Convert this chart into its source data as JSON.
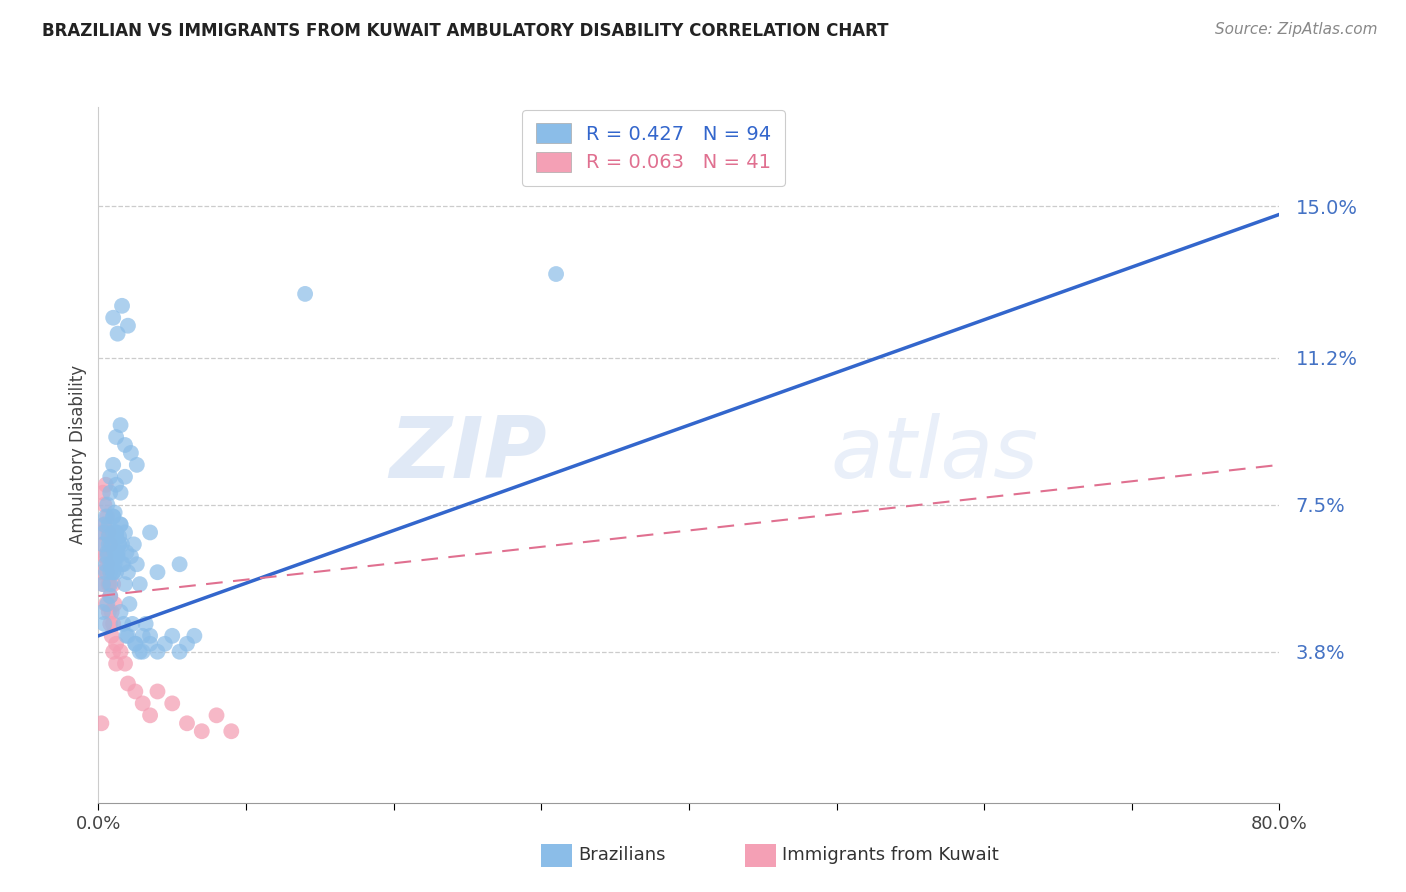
{
  "title": "BRAZILIAN VS IMMIGRANTS FROM KUWAIT AMBULATORY DISABILITY CORRELATION CHART",
  "source": "Source: ZipAtlas.com",
  "ylabel": "Ambulatory Disability",
  "ytick_labels": [
    "15.0%",
    "11.2%",
    "7.5%",
    "3.8%"
  ],
  "ytick_values": [
    0.15,
    0.112,
    0.075,
    0.038
  ],
  "xlim": [
    0.0,
    0.8
  ],
  "ylim": [
    0.0,
    0.175
  ],
  "brazil_color": "#8BBDE8",
  "kuwait_color": "#F4A0B5",
  "brazil_line_color": "#3366CC",
  "kuwait_line_color": "#E07090",
  "brazil_R": 0.427,
  "brazil_N": 94,
  "kuwait_R": 0.063,
  "kuwait_N": 41,
  "brazil_line_x": [
    0.0,
    0.8
  ],
  "brazil_line_y": [
    0.042,
    0.148
  ],
  "kuwait_line_x": [
    0.0,
    0.8
  ],
  "kuwait_line_y": [
    0.052,
    0.085
  ],
  "xtick_positions": [
    0.0,
    0.1,
    0.2,
    0.3,
    0.4,
    0.5,
    0.6,
    0.7,
    0.8
  ],
  "brazil_scatter_x": [
    0.003,
    0.004,
    0.005,
    0.006,
    0.007,
    0.008,
    0.009,
    0.01,
    0.011,
    0.012,
    0.003,
    0.005,
    0.006,
    0.007,
    0.008,
    0.009,
    0.01,
    0.011,
    0.012,
    0.013,
    0.004,
    0.005,
    0.007,
    0.008,
    0.01,
    0.011,
    0.012,
    0.013,
    0.014,
    0.015,
    0.006,
    0.008,
    0.01,
    0.012,
    0.014,
    0.015,
    0.016,
    0.017,
    0.018,
    0.019,
    0.01,
    0.012,
    0.014,
    0.016,
    0.018,
    0.02,
    0.022,
    0.024,
    0.026,
    0.028,
    0.015,
    0.017,
    0.019,
    0.021,
    0.023,
    0.025,
    0.028,
    0.03,
    0.032,
    0.035,
    0.02,
    0.025,
    0.03,
    0.035,
    0.04,
    0.045,
    0.05,
    0.055,
    0.06,
    0.065,
    0.012,
    0.015,
    0.018,
    0.022,
    0.026,
    0.01,
    0.013,
    0.016,
    0.02,
    0.008,
    0.01,
    0.012,
    0.015,
    0.018,
    0.035,
    0.04,
    0.055,
    0.31,
    0.14,
    0.003,
    0.004,
    0.006,
    0.008
  ],
  "brazil_scatter_y": [
    0.065,
    0.068,
    0.06,
    0.063,
    0.07,
    0.058,
    0.065,
    0.072,
    0.06,
    0.068,
    0.055,
    0.058,
    0.062,
    0.067,
    0.055,
    0.06,
    0.058,
    0.063,
    0.067,
    0.062,
    0.07,
    0.072,
    0.065,
    0.06,
    0.068,
    0.073,
    0.058,
    0.063,
    0.067,
    0.07,
    0.075,
    0.078,
    0.072,
    0.068,
    0.065,
    0.07,
    0.065,
    0.06,
    0.068,
    0.063,
    0.058,
    0.062,
    0.065,
    0.06,
    0.055,
    0.058,
    0.062,
    0.065,
    0.06,
    0.055,
    0.048,
    0.045,
    0.042,
    0.05,
    0.045,
    0.04,
    0.038,
    0.042,
    0.045,
    0.04,
    0.042,
    0.04,
    0.038,
    0.042,
    0.038,
    0.04,
    0.042,
    0.038,
    0.04,
    0.042,
    0.092,
    0.095,
    0.09,
    0.088,
    0.085,
    0.122,
    0.118,
    0.125,
    0.12,
    0.082,
    0.085,
    0.08,
    0.078,
    0.082,
    0.068,
    0.058,
    0.06,
    0.133,
    0.128,
    0.048,
    0.045,
    0.05,
    0.052
  ],
  "kuwait_scatter_x": [
    0.002,
    0.003,
    0.004,
    0.005,
    0.006,
    0.007,
    0.008,
    0.009,
    0.01,
    0.011,
    0.002,
    0.003,
    0.004,
    0.005,
    0.006,
    0.007,
    0.008,
    0.009,
    0.01,
    0.012,
    0.003,
    0.004,
    0.005,
    0.006,
    0.007,
    0.008,
    0.01,
    0.012,
    0.015,
    0.018,
    0.02,
    0.025,
    0.03,
    0.035,
    0.04,
    0.05,
    0.06,
    0.07,
    0.08,
    0.09,
    0.002
  ],
  "kuwait_scatter_y": [
    0.058,
    0.055,
    0.062,
    0.05,
    0.06,
    0.055,
    0.052,
    0.048,
    0.055,
    0.05,
    0.068,
    0.065,
    0.07,
    0.062,
    0.058,
    0.048,
    0.045,
    0.042,
    0.038,
    0.035,
    0.078,
    0.075,
    0.08,
    0.072,
    0.068,
    0.065,
    0.045,
    0.04,
    0.038,
    0.035,
    0.03,
    0.028,
    0.025,
    0.022,
    0.028,
    0.025,
    0.02,
    0.018,
    0.022,
    0.018,
    0.02
  ]
}
